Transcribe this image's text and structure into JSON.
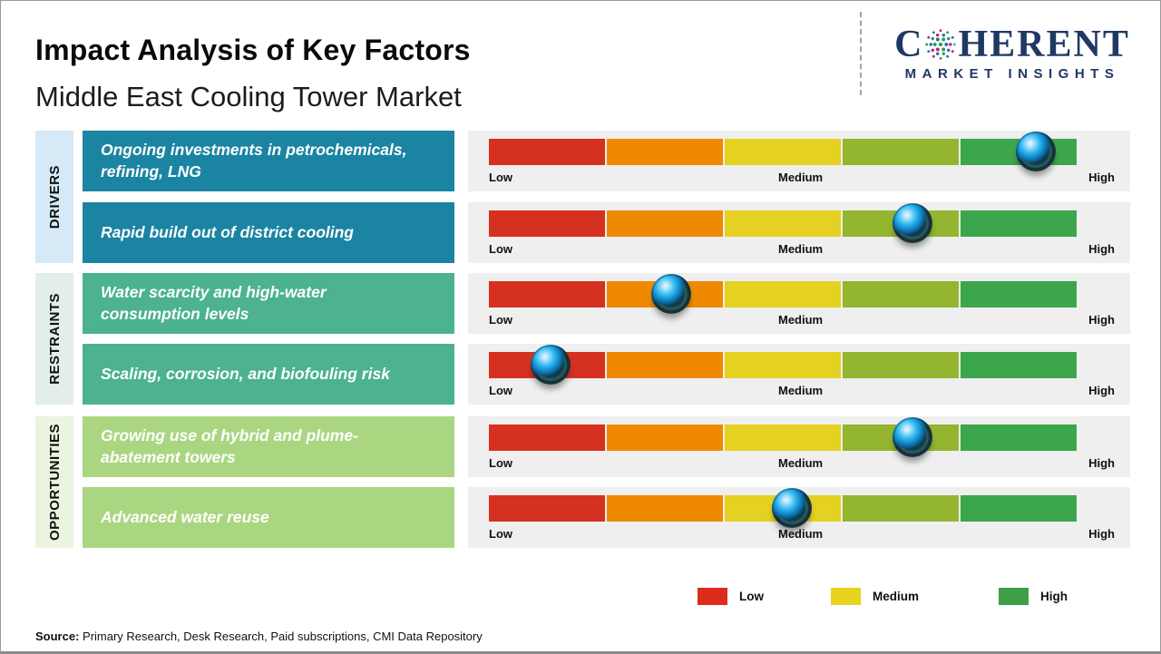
{
  "header": {
    "title": "Impact Analysis of Key Factors",
    "subtitle": "Middle East Cooling Tower Market",
    "logo": {
      "brand_start": "C",
      "brand_end": "HERENT",
      "tagline": "MARKET INSIGHTS",
      "brand_color": "#1f3864"
    }
  },
  "categories": [
    {
      "label": "DRIVERS"
    },
    {
      "label": "RESTRAINTS"
    },
    {
      "label": "OPPORTUNITIES"
    }
  ],
  "scale_labels": {
    "low": "Low",
    "medium": "Medium",
    "high": "High"
  },
  "rows": [
    {
      "category": "Drivers",
      "factor": "Ongoing investments in petrochemicals, refining, LNG",
      "impact_position": 0.93,
      "impact_level": "High"
    },
    {
      "category": "Drivers",
      "factor": "Rapid build out of district cooling",
      "impact_position": 0.72,
      "impact_level": "Medium-High"
    },
    {
      "category": "Restraints",
      "factor": "Water scarcity and high-water consumption levels",
      "impact_position": 0.31,
      "impact_level": "Low-Medium"
    },
    {
      "category": "Restraints",
      "factor": "Scaling, corrosion, and biofouling risk",
      "impact_position": 0.105,
      "impact_level": "Low"
    },
    {
      "category": "Opportunities",
      "factor": "Growing use of hybrid and plume-abatement towers",
      "impact_position": 0.72,
      "impact_level": "Medium-High"
    },
    {
      "category": "Opportunities",
      "factor": "Advanced water reuse",
      "impact_position": 0.515,
      "impact_level": "Medium"
    }
  ],
  "legend": [
    {
      "label": "Low",
      "color": "#dd2c1c"
    },
    {
      "label": "Medium",
      "color": "#e8d41e"
    },
    {
      "label": "High",
      "color": "#3f9e46"
    }
  ],
  "source": {
    "prefix": "Source:",
    "text": " Primary Research, Desk Research, Paid subscriptions, CMI Data Repository"
  },
  "colors": {
    "driver_box": "#1b84a3",
    "restraint_box": "#4cb290",
    "opportunity_box": "#abd681",
    "strip_drivers": "#d5eaf6",
    "strip_restraints": "#e3eee9",
    "strip_opportunities": "#eaf4df",
    "panel_background": "#efefef",
    "bar_segments": [
      "#d63020",
      "#ef8a00",
      "#e5d122",
      "#93b52f",
      "#3ba64b"
    ]
  },
  "chart_data": {
    "type": "table",
    "title": "Impact Analysis of Key Factors",
    "subtitle": "Middle East Cooling Tower Market",
    "scale": [
      "Low",
      "Medium",
      "High"
    ],
    "scale_range": [
      0,
      1
    ],
    "rows": [
      {
        "category": "Drivers",
        "factor": "Ongoing investments in petrochemicals, refining, LNG",
        "impact_position": 0.93,
        "impact_level": "High"
      },
      {
        "category": "Drivers",
        "factor": "Rapid build out of district cooling",
        "impact_position": 0.72,
        "impact_level": "Medium-High"
      },
      {
        "category": "Restraints",
        "factor": "Water scarcity and high-water consumption levels",
        "impact_position": 0.31,
        "impact_level": "Low-Medium"
      },
      {
        "category": "Restraints",
        "factor": "Scaling, corrosion, and biofouling risk",
        "impact_position": 0.105,
        "impact_level": "Low"
      },
      {
        "category": "Opportunities",
        "factor": "Growing use of hybrid and plume-abatement towers",
        "impact_position": 0.72,
        "impact_level": "Medium-High"
      },
      {
        "category": "Opportunities",
        "factor": "Advanced water reuse",
        "impact_position": 0.515,
        "impact_level": "Medium"
      }
    ],
    "legend": [
      {
        "label": "Low",
        "color": "#dd2c1c"
      },
      {
        "label": "Medium",
        "color": "#e8d41e"
      },
      {
        "label": "High",
        "color": "#3f9e46"
      }
    ],
    "legend_position": "bottom"
  }
}
